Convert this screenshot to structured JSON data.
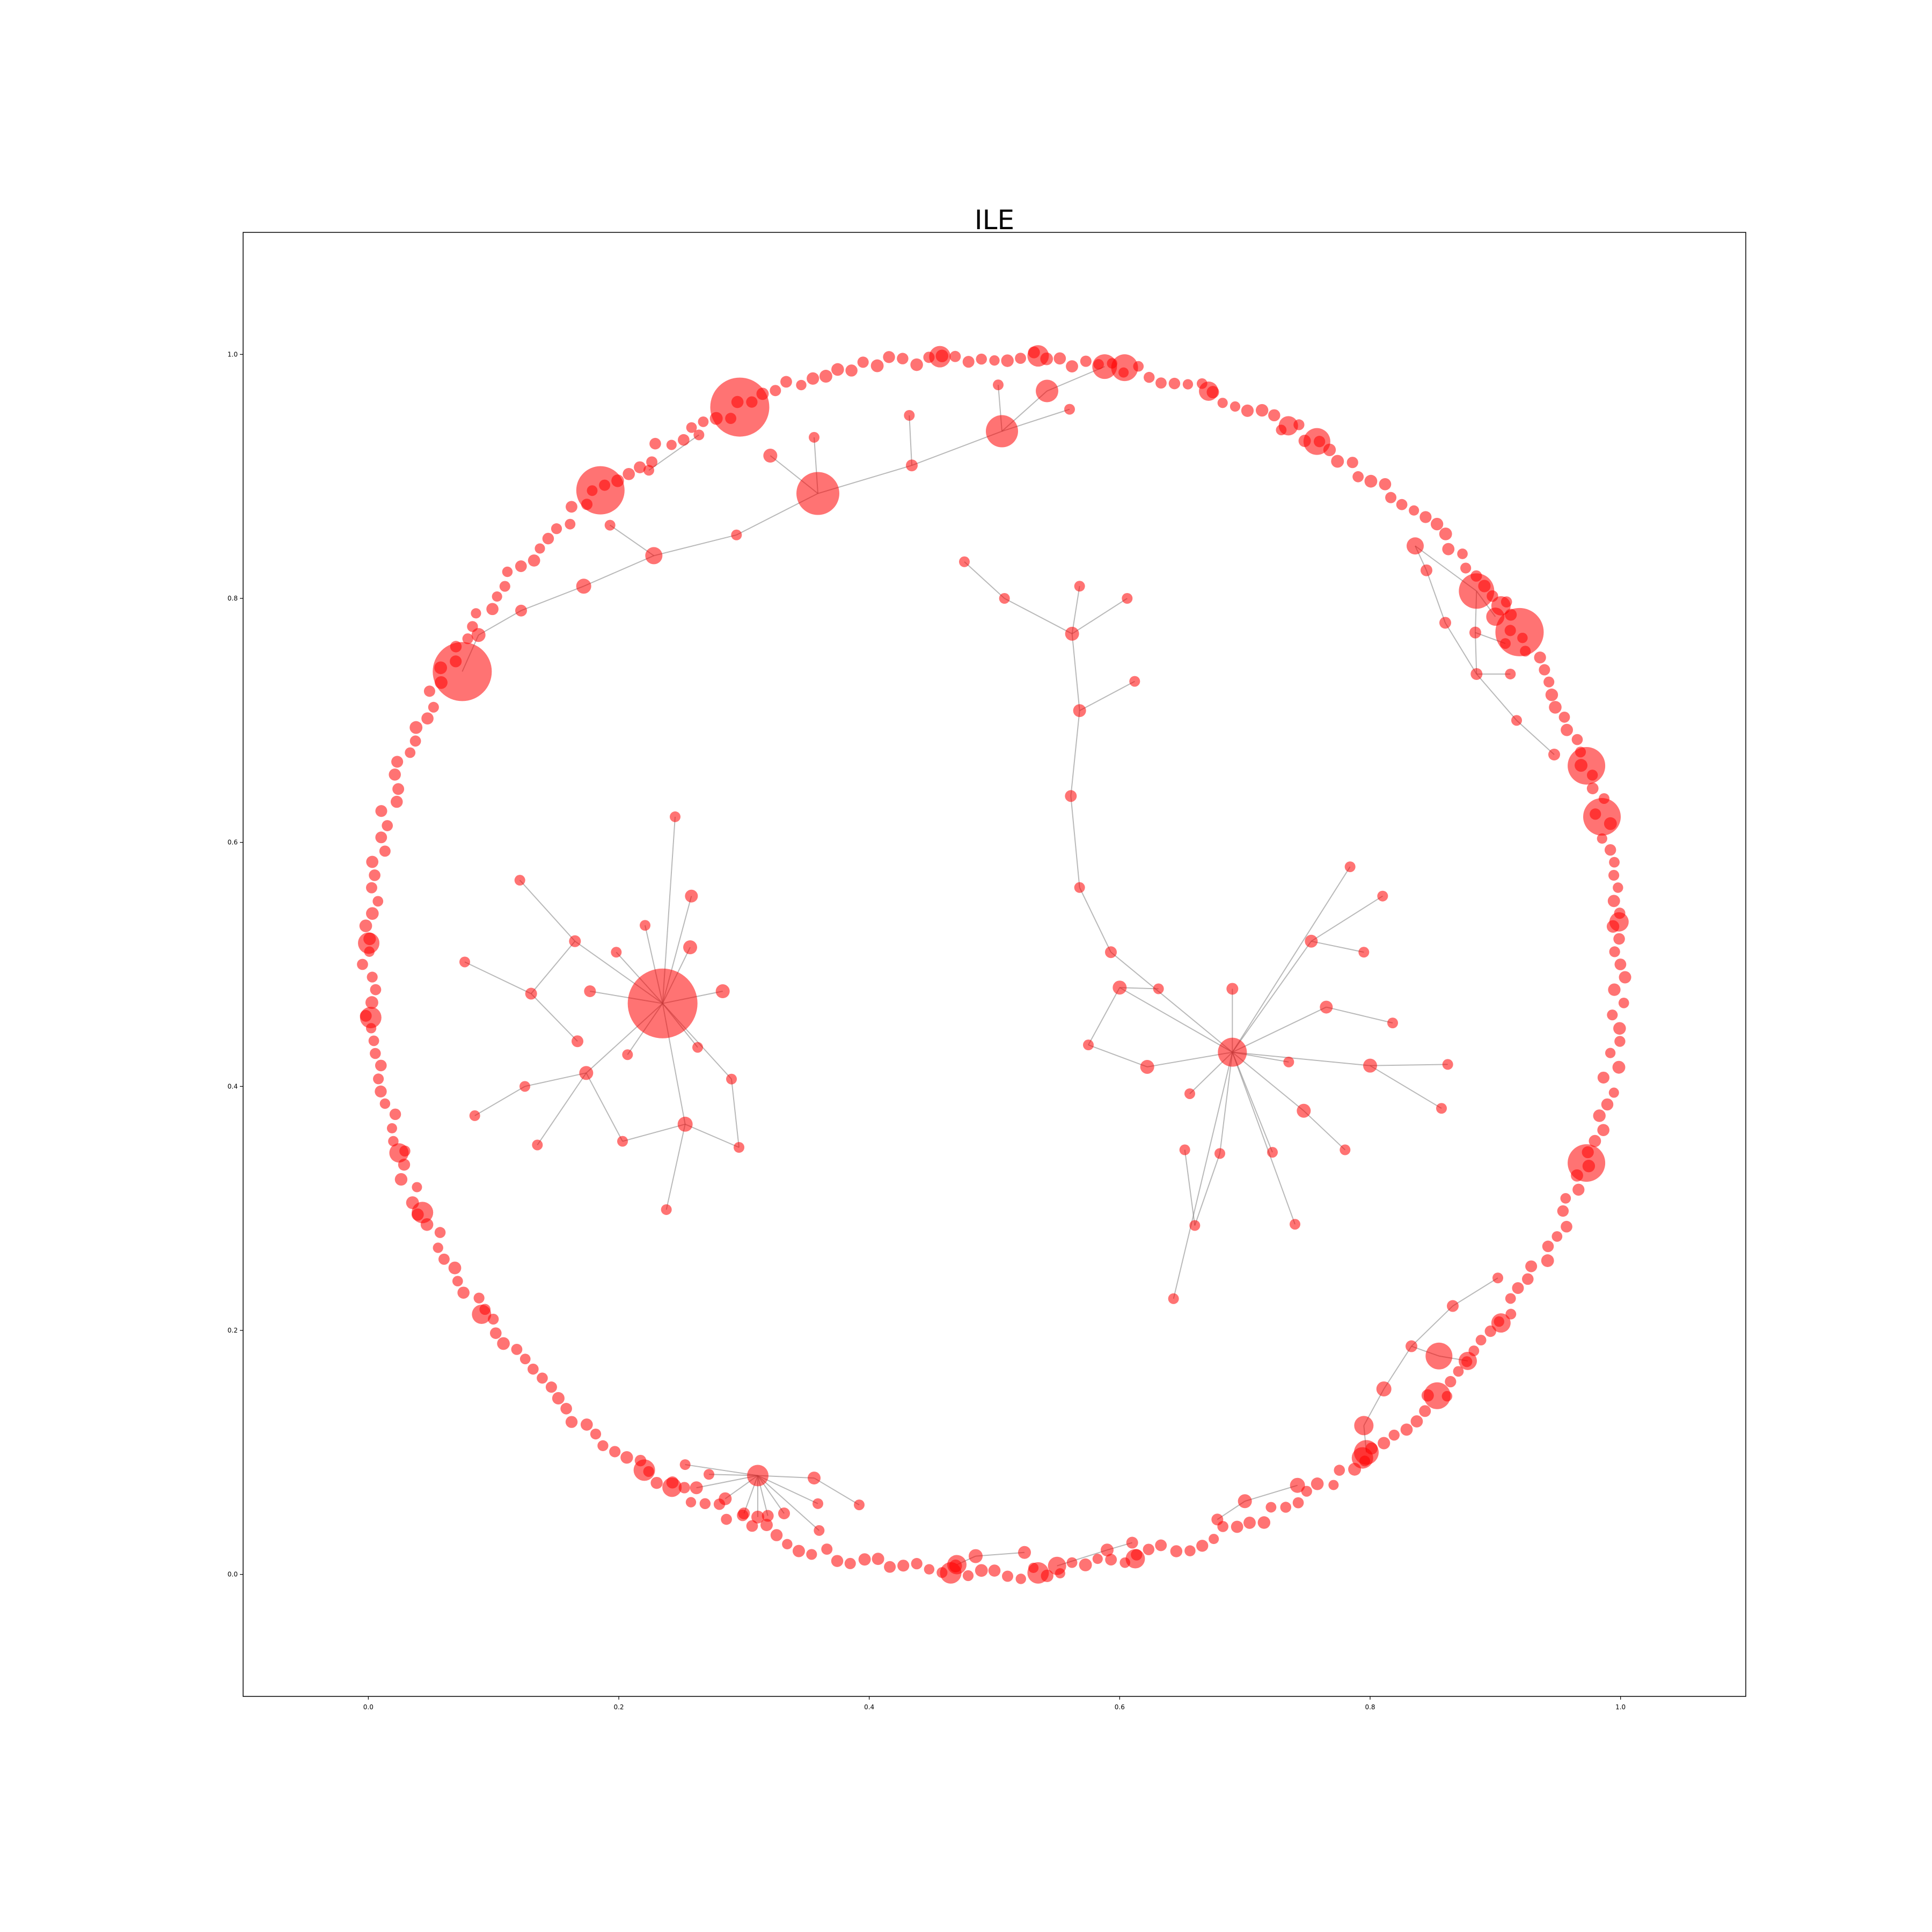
{
  "chart_data": {
    "type": "scatter",
    "subtype": "network-graph",
    "title": "ILE",
    "xlabel": "",
    "ylabel": "",
    "xlim": [
      -0.1,
      1.1
    ],
    "ylim": [
      -0.1,
      1.1
    ],
    "x_ticks": [
      "0.0",
      "0.2",
      "0.4",
      "0.6",
      "0.8",
      "1.0"
    ],
    "y_ticks": [
      "0.0",
      "0.2",
      "0.4",
      "0.6",
      "0.8",
      "1.0"
    ],
    "grid": false,
    "legend": "none",
    "node_color": "#ff0000",
    "edge_color": "#808080",
    "ring": {
      "center": [
        0.5,
        0.5
      ],
      "radius": 0.5,
      "node_count": 300
    },
    "ring_hubs": [
      {
        "angle": 114,
        "size": 5
      },
      {
        "angle": 129,
        "size": 4
      },
      {
        "angle": 33,
        "size": 4
      },
      {
        "angle": 19,
        "size": 3
      },
      {
        "angle": 14,
        "size": 3
      },
      {
        "angle": 341,
        "size": 3
      },
      {
        "angle": 315,
        "size": 2
      },
      {
        "angle": 59,
        "size": 2
      },
      {
        "angle": 78,
        "size": 2
      },
      {
        "angle": 86,
        "size": 1.5
      },
      {
        "angle": 95,
        "size": 1.5
      },
      {
        "angle": 178,
        "size": 1.5
      },
      {
        "angle": 185,
        "size": 1.5
      },
      {
        "angle": 204,
        "size": 1.5
      },
      {
        "angle": 236,
        "size": 1.5
      },
      {
        "angle": 266,
        "size": 1.5
      },
      {
        "angle": 274,
        "size": 1.5
      },
      {
        "angle": 306,
        "size": 1.5
      },
      {
        "angle": 70,
        "size": 1.3
      },
      {
        "angle": 62,
        "size": 1.3
      },
      {
        "angle": 36,
        "size": 1.3
      },
      {
        "angle": 4,
        "size": 1.3
      },
      {
        "angle": 324,
        "size": 1.3
      },
      {
        "angle": 198,
        "size": 1.3
      },
      {
        "angle": 215,
        "size": 1.3
      },
      {
        "angle": 239,
        "size": 1.3
      },
      {
        "angle": 283,
        "size": 1.3
      }
    ],
    "nodes": [
      {
        "id": "c1_hub",
        "x": 0.235,
        "y": 0.468,
        "size": 6
      },
      {
        "id": "c1_a",
        "x": 0.245,
        "y": 0.621,
        "size": 0.5
      },
      {
        "id": "c1_b",
        "x": 0.258,
        "y": 0.556,
        "size": 0.7
      },
      {
        "id": "c1_c",
        "x": 0.221,
        "y": 0.532,
        "size": 0.5
      },
      {
        "id": "c1_d",
        "x": 0.257,
        "y": 0.514,
        "size": 0.8
      },
      {
        "id": "c1_e",
        "x": 0.283,
        "y": 0.478,
        "size": 0.8
      },
      {
        "id": "c1_f",
        "x": 0.198,
        "y": 0.51,
        "size": 0.5
      },
      {
        "id": "c1_g",
        "x": 0.177,
        "y": 0.478,
        "size": 0.6
      },
      {
        "id": "c1_h",
        "x": 0.165,
        "y": 0.519,
        "size": 0.6
      },
      {
        "id": "c1_i",
        "x": 0.121,
        "y": 0.569,
        "size": 0.5
      },
      {
        "id": "c1_j",
        "x": 0.13,
        "y": 0.476,
        "size": 0.6
      },
      {
        "id": "c1_k",
        "x": 0.077,
        "y": 0.502,
        "size": 0.5
      },
      {
        "id": "c1_l",
        "x": 0.167,
        "y": 0.437,
        "size": 0.6
      },
      {
        "id": "c1_m",
        "x": 0.207,
        "y": 0.426,
        "size": 0.5
      },
      {
        "id": "c1_n",
        "x": 0.174,
        "y": 0.411,
        "size": 0.8
      },
      {
        "id": "c1_o",
        "x": 0.125,
        "y": 0.4,
        "size": 0.5
      },
      {
        "id": "c1_p",
        "x": 0.085,
        "y": 0.376,
        "size": 0.5
      },
      {
        "id": "c1_q",
        "x": 0.135,
        "y": 0.352,
        "size": 0.5
      },
      {
        "id": "c1_r",
        "x": 0.203,
        "y": 0.355,
        "size": 0.5
      },
      {
        "id": "c1_s",
        "x": 0.253,
        "y": 0.369,
        "size": 0.9
      },
      {
        "id": "c1_t",
        "x": 0.238,
        "y": 0.299,
        "size": 0.5
      },
      {
        "id": "c1_u",
        "x": 0.263,
        "y": 0.432,
        "size": 0.5
      },
      {
        "id": "c1_v",
        "x": 0.29,
        "y": 0.406,
        "size": 0.5
      },
      {
        "id": "c1_w",
        "x": 0.296,
        "y": 0.35,
        "size": 0.5
      },
      {
        "id": "c2_hub",
        "x": 0.69,
        "y": 0.428,
        "size": 2.2
      },
      {
        "id": "c2_a",
        "x": 0.784,
        "y": 0.58,
        "size": 0.5
      },
      {
        "id": "c2_b",
        "x": 0.81,
        "y": 0.556,
        "size": 0.5
      },
      {
        "id": "c2_c",
        "x": 0.753,
        "y": 0.519,
        "size": 0.7
      },
      {
        "id": "c2_d",
        "x": 0.795,
        "y": 0.51,
        "size": 0.5
      },
      {
        "id": "c2_e",
        "x": 0.765,
        "y": 0.465,
        "size": 0.7
      },
      {
        "id": "c2_f",
        "x": 0.818,
        "y": 0.452,
        "size": 0.5
      },
      {
        "id": "c2_g",
        "x": 0.8,
        "y": 0.417,
        "size": 0.8
      },
      {
        "id": "c2_h",
        "x": 0.862,
        "y": 0.418,
        "size": 0.5
      },
      {
        "id": "c2_i",
        "x": 0.857,
        "y": 0.382,
        "size": 0.5
      },
      {
        "id": "c2_j",
        "x": 0.735,
        "y": 0.42,
        "size": 0.5
      },
      {
        "id": "c2_k",
        "x": 0.747,
        "y": 0.38,
        "size": 0.8
      },
      {
        "id": "c2_l",
        "x": 0.78,
        "y": 0.348,
        "size": 0.5
      },
      {
        "id": "c2_m",
        "x": 0.722,
        "y": 0.346,
        "size": 0.5
      },
      {
        "id": "c2_n",
        "x": 0.74,
        "y": 0.287,
        "size": 0.5
      },
      {
        "id": "c2_o",
        "x": 0.68,
        "y": 0.345,
        "size": 0.5
      },
      {
        "id": "c2_p",
        "x": 0.66,
        "y": 0.286,
        "size": 0.5
      },
      {
        "id": "c2_q",
        "x": 0.643,
        "y": 0.226,
        "size": 0.5
      },
      {
        "id": "c2_r",
        "x": 0.652,
        "y": 0.348,
        "size": 0.5
      },
      {
        "id": "c2_s",
        "x": 0.656,
        "y": 0.394,
        "size": 0.5
      },
      {
        "id": "c2_t",
        "x": 0.622,
        "y": 0.416,
        "size": 0.8
      },
      {
        "id": "c2_u",
        "x": 0.575,
        "y": 0.434,
        "size": 0.5
      },
      {
        "id": "c2_v",
        "x": 0.6,
        "y": 0.481,
        "size": 0.8
      },
      {
        "id": "c2_w",
        "x": 0.631,
        "y": 0.48,
        "size": 0.5
      },
      {
        "id": "c2_x",
        "x": 0.69,
        "y": 0.48,
        "size": 0.6
      },
      {
        "id": "c2_y",
        "x": 0.593,
        "y": 0.51,
        "size": 0.6
      },
      {
        "id": "c2_z",
        "x": 0.568,
        "y": 0.563,
        "size": 0.5
      },
      {
        "id": "c2_aa",
        "x": 0.561,
        "y": 0.638,
        "size": 0.6
      },
      {
        "id": "c2_ab",
        "x": 0.568,
        "y": 0.708,
        "size": 0.7
      },
      {
        "id": "c2_ac",
        "x": 0.612,
        "y": 0.732,
        "size": 0.5
      },
      {
        "id": "c2_ad",
        "x": 0.562,
        "y": 0.771,
        "size": 0.8
      },
      {
        "id": "c2_ae",
        "x": 0.476,
        "y": 0.83,
        "size": 0.5
      },
      {
        "id": "c2_af",
        "x": 0.508,
        "y": 0.8,
        "size": 0.5
      },
      {
        "id": "c2_ag",
        "x": 0.568,
        "y": 0.81,
        "size": 0.5
      },
      {
        "id": "c2_ah",
        "x": 0.606,
        "y": 0.8,
        "size": 0.5
      },
      {
        "id": "c3_hub",
        "x": 0.311,
        "y": 0.081,
        "size": 1.5
      },
      {
        "id": "c3_a",
        "x": 0.253,
        "y": 0.09,
        "size": 0.5
      },
      {
        "id": "c3_b",
        "x": 0.262,
        "y": 0.071,
        "size": 0.7
      },
      {
        "id": "c3_c",
        "x": 0.285,
        "y": 0.062,
        "size": 0.7
      },
      {
        "id": "c3_d",
        "x": 0.3,
        "y": 0.05,
        "size": 0.6
      },
      {
        "id": "c3_e",
        "x": 0.311,
        "y": 0.047,
        "size": 0.7
      },
      {
        "id": "c3_f",
        "x": 0.319,
        "y": 0.048,
        "size": 0.6
      },
      {
        "id": "c3_g",
        "x": 0.332,
        "y": 0.05,
        "size": 0.6
      },
      {
        "id": "c3_h",
        "x": 0.356,
        "y": 0.079,
        "size": 0.7
      },
      {
        "id": "c3_i",
        "x": 0.359,
        "y": 0.058,
        "size": 0.5
      },
      {
        "id": "c3_j",
        "x": 0.392,
        "y": 0.057,
        "size": 0.5
      },
      {
        "id": "c3_k",
        "x": 0.36,
        "y": 0.036,
        "size": 0.5
      },
      {
        "id": "c3_l",
        "x": 0.272,
        "y": 0.082,
        "size": 0.5
      },
      {
        "id": "c4_a",
        "x": 0.359,
        "y": 0.886,
        "size": 3.5
      },
      {
        "id": "c4_b",
        "x": 0.506,
        "y": 0.937,
        "size": 2.5
      },
      {
        "id": "c4_c",
        "x": 0.542,
        "y": 0.97,
        "size": 1.6
      },
      {
        "id": "c4_d",
        "x": 0.588,
        "y": 0.99,
        "size": 1.8
      },
      {
        "id": "c4_e",
        "x": 0.434,
        "y": 0.909,
        "size": 0.6
      },
      {
        "id": "c4_f",
        "x": 0.432,
        "y": 0.95,
        "size": 0.5
      },
      {
        "id": "c4_g",
        "x": 0.321,
        "y": 0.917,
        "size": 0.8
      },
      {
        "id": "c4_h",
        "x": 0.356,
        "y": 0.932,
        "size": 0.5
      },
      {
        "id": "c4_i",
        "x": 0.294,
        "y": 0.852,
        "size": 0.5
      },
      {
        "id": "c4_j",
        "x": 0.228,
        "y": 0.835,
        "size": 1.1
      },
      {
        "id": "c4_k",
        "x": 0.193,
        "y": 0.86,
        "size": 0.5
      },
      {
        "id": "c4_l",
        "x": 0.172,
        "y": 0.81,
        "size": 0.9
      },
      {
        "id": "c4_m",
        "x": 0.122,
        "y": 0.79,
        "size": 0.6
      },
      {
        "id": "c4_n",
        "x": 0.088,
        "y": 0.77,
        "size": 0.8
      },
      {
        "id": "c4_o",
        "x": 0.075,
        "y": 0.74,
        "size": 5
      },
      {
        "id": "c4_p",
        "x": 0.503,
        "y": 0.975,
        "size": 0.5
      },
      {
        "id": "c4_q",
        "x": 0.56,
        "y": 0.955,
        "size": 0.5
      },
      {
        "id": "c4_r",
        "x": 0.224,
        "y": 0.905,
        "size": 0.5
      },
      {
        "id": "c4_s",
        "x": 0.264,
        "y": 0.934,
        "size": 0.5
      },
      {
        "id": "c5_a",
        "x": 0.885,
        "y": 0.806,
        "size": 2.8
      },
      {
        "id": "c5_b",
        "x": 0.836,
        "y": 0.843,
        "size": 1.1
      },
      {
        "id": "c5_c",
        "x": 0.845,
        "y": 0.823,
        "size": 0.6
      },
      {
        "id": "c5_d",
        "x": 0.86,
        "y": 0.78,
        "size": 0.6
      },
      {
        "id": "c5_e",
        "x": 0.884,
        "y": 0.772,
        "size": 0.6
      },
      {
        "id": "c5_f",
        "x": 0.908,
        "y": 0.763,
        "size": 0.5
      },
      {
        "id": "c5_g",
        "x": 0.885,
        "y": 0.738,
        "size": 0.6
      },
      {
        "id": "c5_h",
        "x": 0.912,
        "y": 0.738,
        "size": 0.5
      },
      {
        "id": "c5_i",
        "x": 0.917,
        "y": 0.7,
        "size": 0.5
      },
      {
        "id": "c5_j",
        "x": 0.947,
        "y": 0.672,
        "size": 0.6
      },
      {
        "id": "c5_k",
        "x": 0.9,
        "y": 0.785,
        "size": 1.2
      },
      {
        "id": "c6_a",
        "x": 0.855,
        "y": 0.179,
        "size": 2
      },
      {
        "id": "c6_b",
        "x": 0.833,
        "y": 0.187,
        "size": 0.6
      },
      {
        "id": "c6_c",
        "x": 0.811,
        "y": 0.152,
        "size": 0.9
      },
      {
        "id": "c6_d",
        "x": 0.795,
        "y": 0.122,
        "size": 1.3
      },
      {
        "id": "c6_e",
        "x": 0.797,
        "y": 0.1,
        "size": 1.8
      },
      {
        "id": "c6_f",
        "x": 0.866,
        "y": 0.22,
        "size": 0.6
      },
      {
        "id": "c6_g",
        "x": 0.902,
        "y": 0.243,
        "size": 0.5
      },
      {
        "id": "c6_h",
        "x": 0.878,
        "y": 0.175,
        "size": 1.2
      },
      {
        "id": "c7_a",
        "x": 0.47,
        "y": 0.008,
        "size": 1.3
      },
      {
        "id": "c7_b",
        "x": 0.485,
        "y": 0.015,
        "size": 0.8
      },
      {
        "id": "c7_c",
        "x": 0.524,
        "y": 0.018,
        "size": 0.7
      },
      {
        "id": "c7_d",
        "x": 0.55,
        "y": 0.007,
        "size": 1.2
      },
      {
        "id": "c7_e",
        "x": 0.59,
        "y": 0.02,
        "size": 0.7
      },
      {
        "id": "c7_f",
        "x": 0.61,
        "y": 0.026,
        "size": 0.6
      },
      {
        "id": "c7_g",
        "x": 0.7,
        "y": 0.06,
        "size": 0.8
      },
      {
        "id": "c7_h",
        "x": 0.678,
        "y": 0.045,
        "size": 0.6
      },
      {
        "id": "c7_i",
        "x": 0.742,
        "y": 0.073,
        "size": 0.9
      }
    ],
    "edges": [
      [
        "c1_hub",
        "c1_a"
      ],
      [
        "c1_hub",
        "c1_b"
      ],
      [
        "c1_hub",
        "c1_c"
      ],
      [
        "c1_hub",
        "c1_d"
      ],
      [
        "c1_hub",
        "c1_e"
      ],
      [
        "c1_hub",
        "c1_f"
      ],
      [
        "c1_hub",
        "c1_g"
      ],
      [
        "c1_hub",
        "c1_h"
      ],
      [
        "c1_h",
        "c1_i"
      ],
      [
        "c1_h",
        "c1_j"
      ],
      [
        "c1_j",
        "c1_k"
      ],
      [
        "c1_j",
        "c1_l"
      ],
      [
        "c1_hub",
        "c1_m"
      ],
      [
        "c1_hub",
        "c1_n"
      ],
      [
        "c1_n",
        "c1_o"
      ],
      [
        "c1_o",
        "c1_p"
      ],
      [
        "c1_n",
        "c1_q"
      ],
      [
        "c1_n",
        "c1_r"
      ],
      [
        "c1_r",
        "c1_s"
      ],
      [
        "c1_hub",
        "c1_s"
      ],
      [
        "c1_s",
        "c1_t"
      ],
      [
        "c1_s",
        "c1_w"
      ],
      [
        "c1_hub",
        "c1_u"
      ],
      [
        "c1_v",
        "c1_w"
      ],
      [
        "c1_hub",
        "c1_v"
      ],
      [
        "c2_hub",
        "c2_a"
      ],
      [
        "c2_c",
        "c2_b"
      ],
      [
        "c2_hub",
        "c2_c"
      ],
      [
        "c2_c",
        "c2_d"
      ],
      [
        "c2_hub",
        "c2_e"
      ],
      [
        "c2_e",
        "c2_f"
      ],
      [
        "c2_hub",
        "c2_g"
      ],
      [
        "c2_g",
        "c2_h"
      ],
      [
        "c2_g",
        "c2_i"
      ],
      [
        "c2_hub",
        "c2_j"
      ],
      [
        "c2_hub",
        "c2_k"
      ],
      [
        "c2_k",
        "c2_l"
      ],
      [
        "c2_hub",
        "c2_m"
      ],
      [
        "c2_hub",
        "c2_n"
      ],
      [
        "c2_hub",
        "c2_o"
      ],
      [
        "c2_o",
        "c2_p"
      ],
      [
        "c2_p",
        "c2_r"
      ],
      [
        "c2_hub",
        "c2_q"
      ],
      [
        "c2_hub",
        "c2_s"
      ],
      [
        "c2_hub",
        "c2_t"
      ],
      [
        "c2_v",
        "c2_u"
      ],
      [
        "c2_u",
        "c2_t"
      ],
      [
        "c2_hub",
        "c2_v"
      ],
      [
        "c2_v",
        "c2_w"
      ],
      [
        "c2_hub",
        "c2_x"
      ],
      [
        "c2_hub",
        "c2_y"
      ],
      [
        "c2_y",
        "c2_z"
      ],
      [
        "c2_z",
        "c2_aa"
      ],
      [
        "c2_aa",
        "c2_ab"
      ],
      [
        "c2_ab",
        "c2_ac"
      ],
      [
        "c2_ab",
        "c2_ad"
      ],
      [
        "c2_ad",
        "c2_af"
      ],
      [
        "c2_af",
        "c2_ae"
      ],
      [
        "c2_ad",
        "c2_ag"
      ],
      [
        "c2_ad",
        "c2_ah"
      ],
      [
        "c3_hub",
        "c3_a"
      ],
      [
        "c3_hub",
        "c3_b"
      ],
      [
        "c3_hub",
        "c3_c"
      ],
      [
        "c3_hub",
        "c3_d"
      ],
      [
        "c3_hub",
        "c3_e"
      ],
      [
        "c3_hub",
        "c3_f"
      ],
      [
        "c3_hub",
        "c3_g"
      ],
      [
        "c3_hub",
        "c3_h"
      ],
      [
        "c3_h",
        "c3_j"
      ],
      [
        "c3_hub",
        "c3_i"
      ],
      [
        "c3_hub",
        "c3_k"
      ],
      [
        "c3_hub",
        "c3_l"
      ],
      [
        "c4_o",
        "c4_n"
      ],
      [
        "c4_n",
        "c4_m"
      ],
      [
        "c4_m",
        "c4_l"
      ],
      [
        "c4_l",
        "c4_j"
      ],
      [
        "c4_j",
        "c4_k"
      ],
      [
        "c4_j",
        "c4_i"
      ],
      [
        "c4_i",
        "c4_a"
      ],
      [
        "c4_a",
        "c4_g"
      ],
      [
        "c4_a",
        "c4_h"
      ],
      [
        "c4_a",
        "c4_e"
      ],
      [
        "c4_e",
        "c4_f"
      ],
      [
        "c4_e",
        "c4_b"
      ],
      [
        "c4_b",
        "c4_p"
      ],
      [
        "c4_b",
        "c4_c"
      ],
      [
        "c4_b",
        "c4_q"
      ],
      [
        "c4_c",
        "c4_d"
      ],
      [
        "c4_r",
        "c4_s"
      ],
      [
        "c5_b",
        "c5_c"
      ],
      [
        "c5_c",
        "c5_d"
      ],
      [
        "c5_d",
        "c5_g"
      ],
      [
        "c5_g",
        "c5_h"
      ],
      [
        "c5_g",
        "c5_i"
      ],
      [
        "c5_i",
        "c5_j"
      ],
      [
        "c5_a",
        "c5_e"
      ],
      [
        "c5_e",
        "c5_f"
      ],
      [
        "c5_e",
        "c5_g"
      ],
      [
        "c5_a",
        "c5_k"
      ],
      [
        "c5_b",
        "c5_a"
      ],
      [
        "c6_a",
        "c6_b"
      ],
      [
        "c6_b",
        "c6_c"
      ],
      [
        "c6_c",
        "c6_d"
      ],
      [
        "c6_d",
        "c6_e"
      ],
      [
        "c6_b",
        "c6_f"
      ],
      [
        "c6_f",
        "c6_g"
      ],
      [
        "c6_a",
        "c6_h"
      ],
      [
        "c7_a",
        "c7_b"
      ],
      [
        "c7_b",
        "c7_c"
      ],
      [
        "c7_d",
        "c7_e"
      ],
      [
        "c7_e",
        "c7_f"
      ],
      [
        "c7_g",
        "c7_h"
      ],
      [
        "c7_g",
        "c7_i"
      ]
    ]
  }
}
